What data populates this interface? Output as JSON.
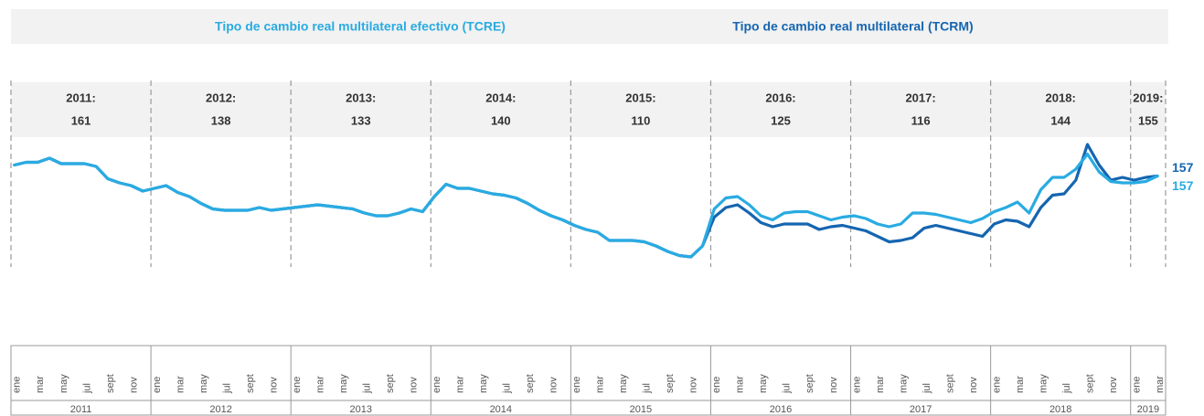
{
  "chart_data": {
    "type": "line",
    "categories": [
      "ene",
      null,
      "mar",
      null,
      "may",
      null,
      "jul",
      null,
      "sept",
      null,
      "nov",
      null,
      "ene",
      null,
      "mar",
      null,
      "may",
      null,
      "jul",
      null,
      "sept",
      null,
      "nov",
      null,
      "ene",
      null,
      "mar",
      null,
      "may",
      null,
      "jul",
      null,
      "sept",
      null,
      "nov",
      null,
      "ene",
      null,
      "mar",
      null,
      "may",
      null,
      "jul",
      null,
      "sept",
      null,
      "nov",
      null,
      "ene",
      null,
      "mar",
      null,
      "may",
      null,
      "jul",
      null,
      "sept",
      null,
      "nov",
      null,
      "ene",
      null,
      "mar",
      null,
      "may",
      null,
      "jul",
      null,
      "sept",
      null,
      "nov",
      null,
      "ene",
      null,
      "mar",
      null,
      "may",
      null,
      "jul",
      null,
      "sept",
      null,
      "nov",
      null,
      "ene",
      null,
      "mar",
      null,
      "may",
      null,
      "jul",
      null,
      "sept",
      null,
      "nov",
      null,
      "ene",
      null,
      "mar"
    ],
    "years": [
      "2011",
      "2012",
      "2013",
      "2014",
      "2015",
      "2016",
      "2017",
      "2018",
      "2019"
    ],
    "annual": [
      {
        "label": "2011:",
        "value": 161
      },
      {
        "label": "2012:",
        "value": 138
      },
      {
        "label": "2013:",
        "value": 133
      },
      {
        "label": "2014:",
        "value": 140
      },
      {
        "label": "2015:",
        "value": 110
      },
      {
        "label": "2016:",
        "value": 125
      },
      {
        "label": "2017:",
        "value": 116
      },
      {
        "label": "2018:",
        "value": 144
      },
      {
        "label": "2019:",
        "value": 155
      }
    ],
    "series": [
      {
        "name": "Tipo de cambio real multilateral efectivo (TCRE)",
        "color": "#29abe2",
        "values": [
          165,
          167,
          167,
          170,
          166,
          166,
          166,
          164,
          155,
          152,
          150,
          146,
          148,
          150,
          145,
          142,
          137,
          133,
          132,
          132,
          132,
          134,
          132,
          133,
          134,
          135,
          136,
          135,
          134,
          133,
          130,
          128,
          128,
          130,
          133,
          131,
          142,
          151,
          148,
          148,
          146,
          144,
          143,
          141,
          137,
          132,
          128,
          125,
          121,
          118,
          116,
          110,
          110,
          110,
          109,
          106,
          102,
          99,
          98,
          106,
          133,
          141,
          142,
          136,
          128,
          125,
          130,
          131,
          131,
          128,
          125,
          127,
          128,
          126,
          122,
          120,
          122,
          130,
          130,
          129,
          127,
          125,
          123,
          126,
          131,
          134,
          138,
          130,
          147,
          156,
          156,
          162,
          173,
          160,
          153,
          152,
          152,
          153,
          157
        ]
      },
      {
        "name": "Tipo de cambio real multilateral (TCRM)",
        "color": "#1565b0",
        "values": [
          165,
          167,
          167,
          170,
          166,
          166,
          166,
          164,
          155,
          152,
          150,
          146,
          148,
          150,
          145,
          142,
          137,
          133,
          132,
          132,
          132,
          134,
          132,
          133,
          134,
          135,
          136,
          135,
          134,
          133,
          130,
          128,
          128,
          130,
          133,
          131,
          142,
          151,
          148,
          148,
          146,
          144,
          143,
          141,
          137,
          132,
          128,
          125,
          121,
          118,
          116,
          110,
          110,
          110,
          109,
          106,
          102,
          99,
          98,
          106,
          127,
          134,
          136,
          130,
          123,
          120,
          122,
          122,
          122,
          118,
          120,
          121,
          119,
          117,
          113,
          109,
          110,
          112,
          119,
          121,
          119,
          117,
          115,
          113,
          122,
          125,
          124,
          120,
          134,
          143,
          144,
          154,
          180,
          165,
          154,
          156,
          154,
          156,
          157
        ]
      }
    ]
  }
}
